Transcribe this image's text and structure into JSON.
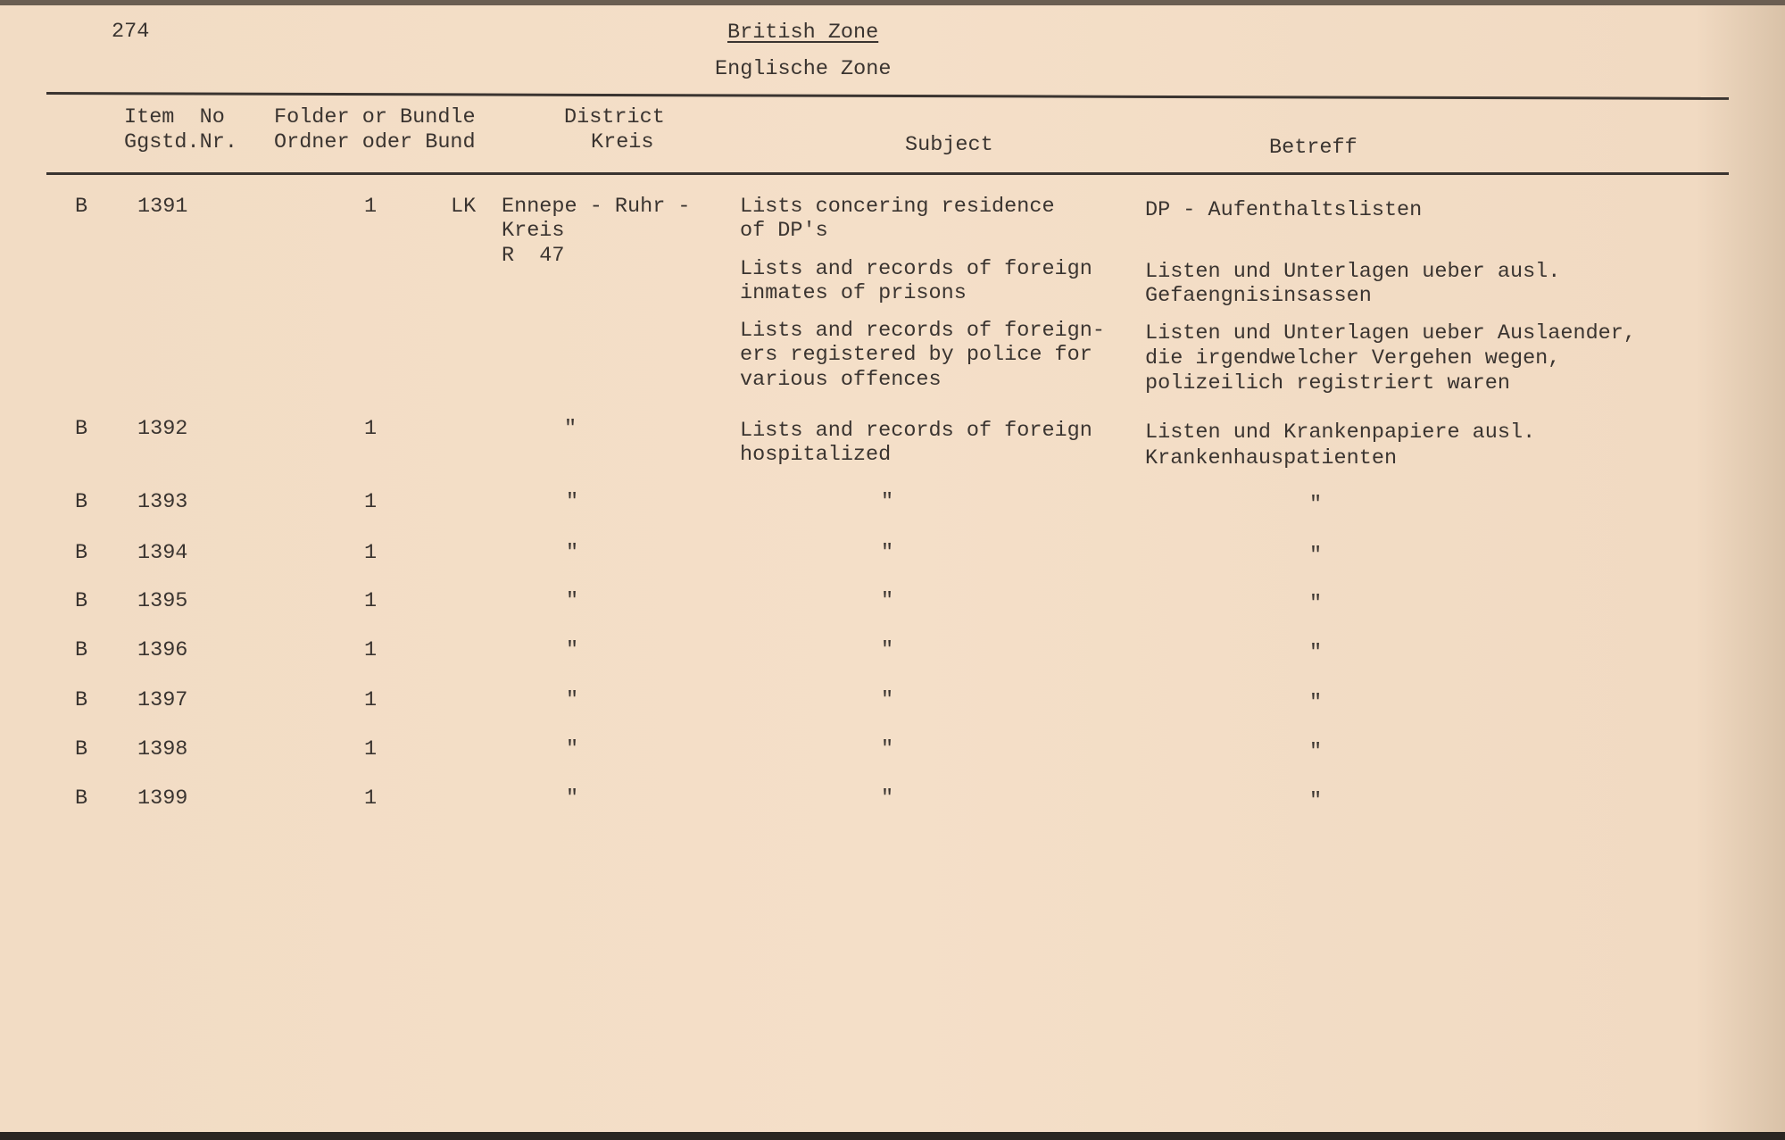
{
  "page_number": "274",
  "title": "British Zone",
  "subtitle": "Englische Zone",
  "headers": {
    "item_no": [
      "Item  No",
      "Ggstd.Nr."
    ],
    "folder": [
      "Folder or Bundle",
      "Ordner oder Bund"
    ],
    "district": [
      "District",
      "Kreis"
    ],
    "subject": "Subject",
    "betreff": "Betreff"
  },
  "rows": [
    {
      "series": "B",
      "item": "1391",
      "folder": "1",
      "district_prefix": "LK",
      "district": [
        "Ennepe - Ruhr -",
        "Kreis",
        "R  47"
      ],
      "entries": [
        {
          "subject": [
            "Lists concering residence",
            "of DP's"
          ],
          "betreff": [
            "DP - Aufenthaltslisten"
          ]
        },
        {
          "subject": [
            "Lists and records of foreign",
            "inmates of prisons"
          ],
          "betreff": [
            "Listen und Unterlagen ueber ausl.",
            "Gefaengnisinsassen"
          ]
        },
        {
          "subject": [
            "Lists and records of foreign-",
            "ers registered by police for",
            "various offences"
          ],
          "betreff": [
            "Listen und Unterlagen ueber Auslaender,",
            "die irgendwelcher Vergehen wegen,",
            "polizeilich registriert waren"
          ]
        }
      ]
    },
    {
      "series": "B",
      "item": "1392",
      "folder": "1",
      "district": "\"",
      "subject": [
        "Lists and records of foreign",
        "hospitalized"
      ],
      "betreff": [
        "Listen und Krankenpapiere ausl.",
        "Krankenhauspatienten"
      ]
    },
    {
      "series": "B",
      "item": "1393",
      "folder": "1",
      "district": "\"",
      "subject": "\"",
      "betreff": "\""
    },
    {
      "series": "B",
      "item": "1394",
      "folder": "1",
      "district": "\"",
      "subject": "\"",
      "betreff": "\""
    },
    {
      "series": "B",
      "item": "1395",
      "folder": "1",
      "district": "\"",
      "subject": "\"",
      "betreff": "\""
    },
    {
      "series": "B",
      "item": "1396",
      "folder": "1",
      "district": "\"",
      "subject": "\"",
      "betreff": "\""
    },
    {
      "series": "B",
      "item": "1397",
      "folder": "1",
      "district": "\"",
      "subject": "\"",
      "betreff": "\""
    },
    {
      "series": "B",
      "item": "1398",
      "folder": "1",
      "district": "\"",
      "subject": "\"",
      "betreff": "\""
    },
    {
      "series": "B",
      "item": "1399",
      "folder": "1",
      "district": "\"",
      "subject": "\"",
      "betreff": "\""
    }
  ]
}
